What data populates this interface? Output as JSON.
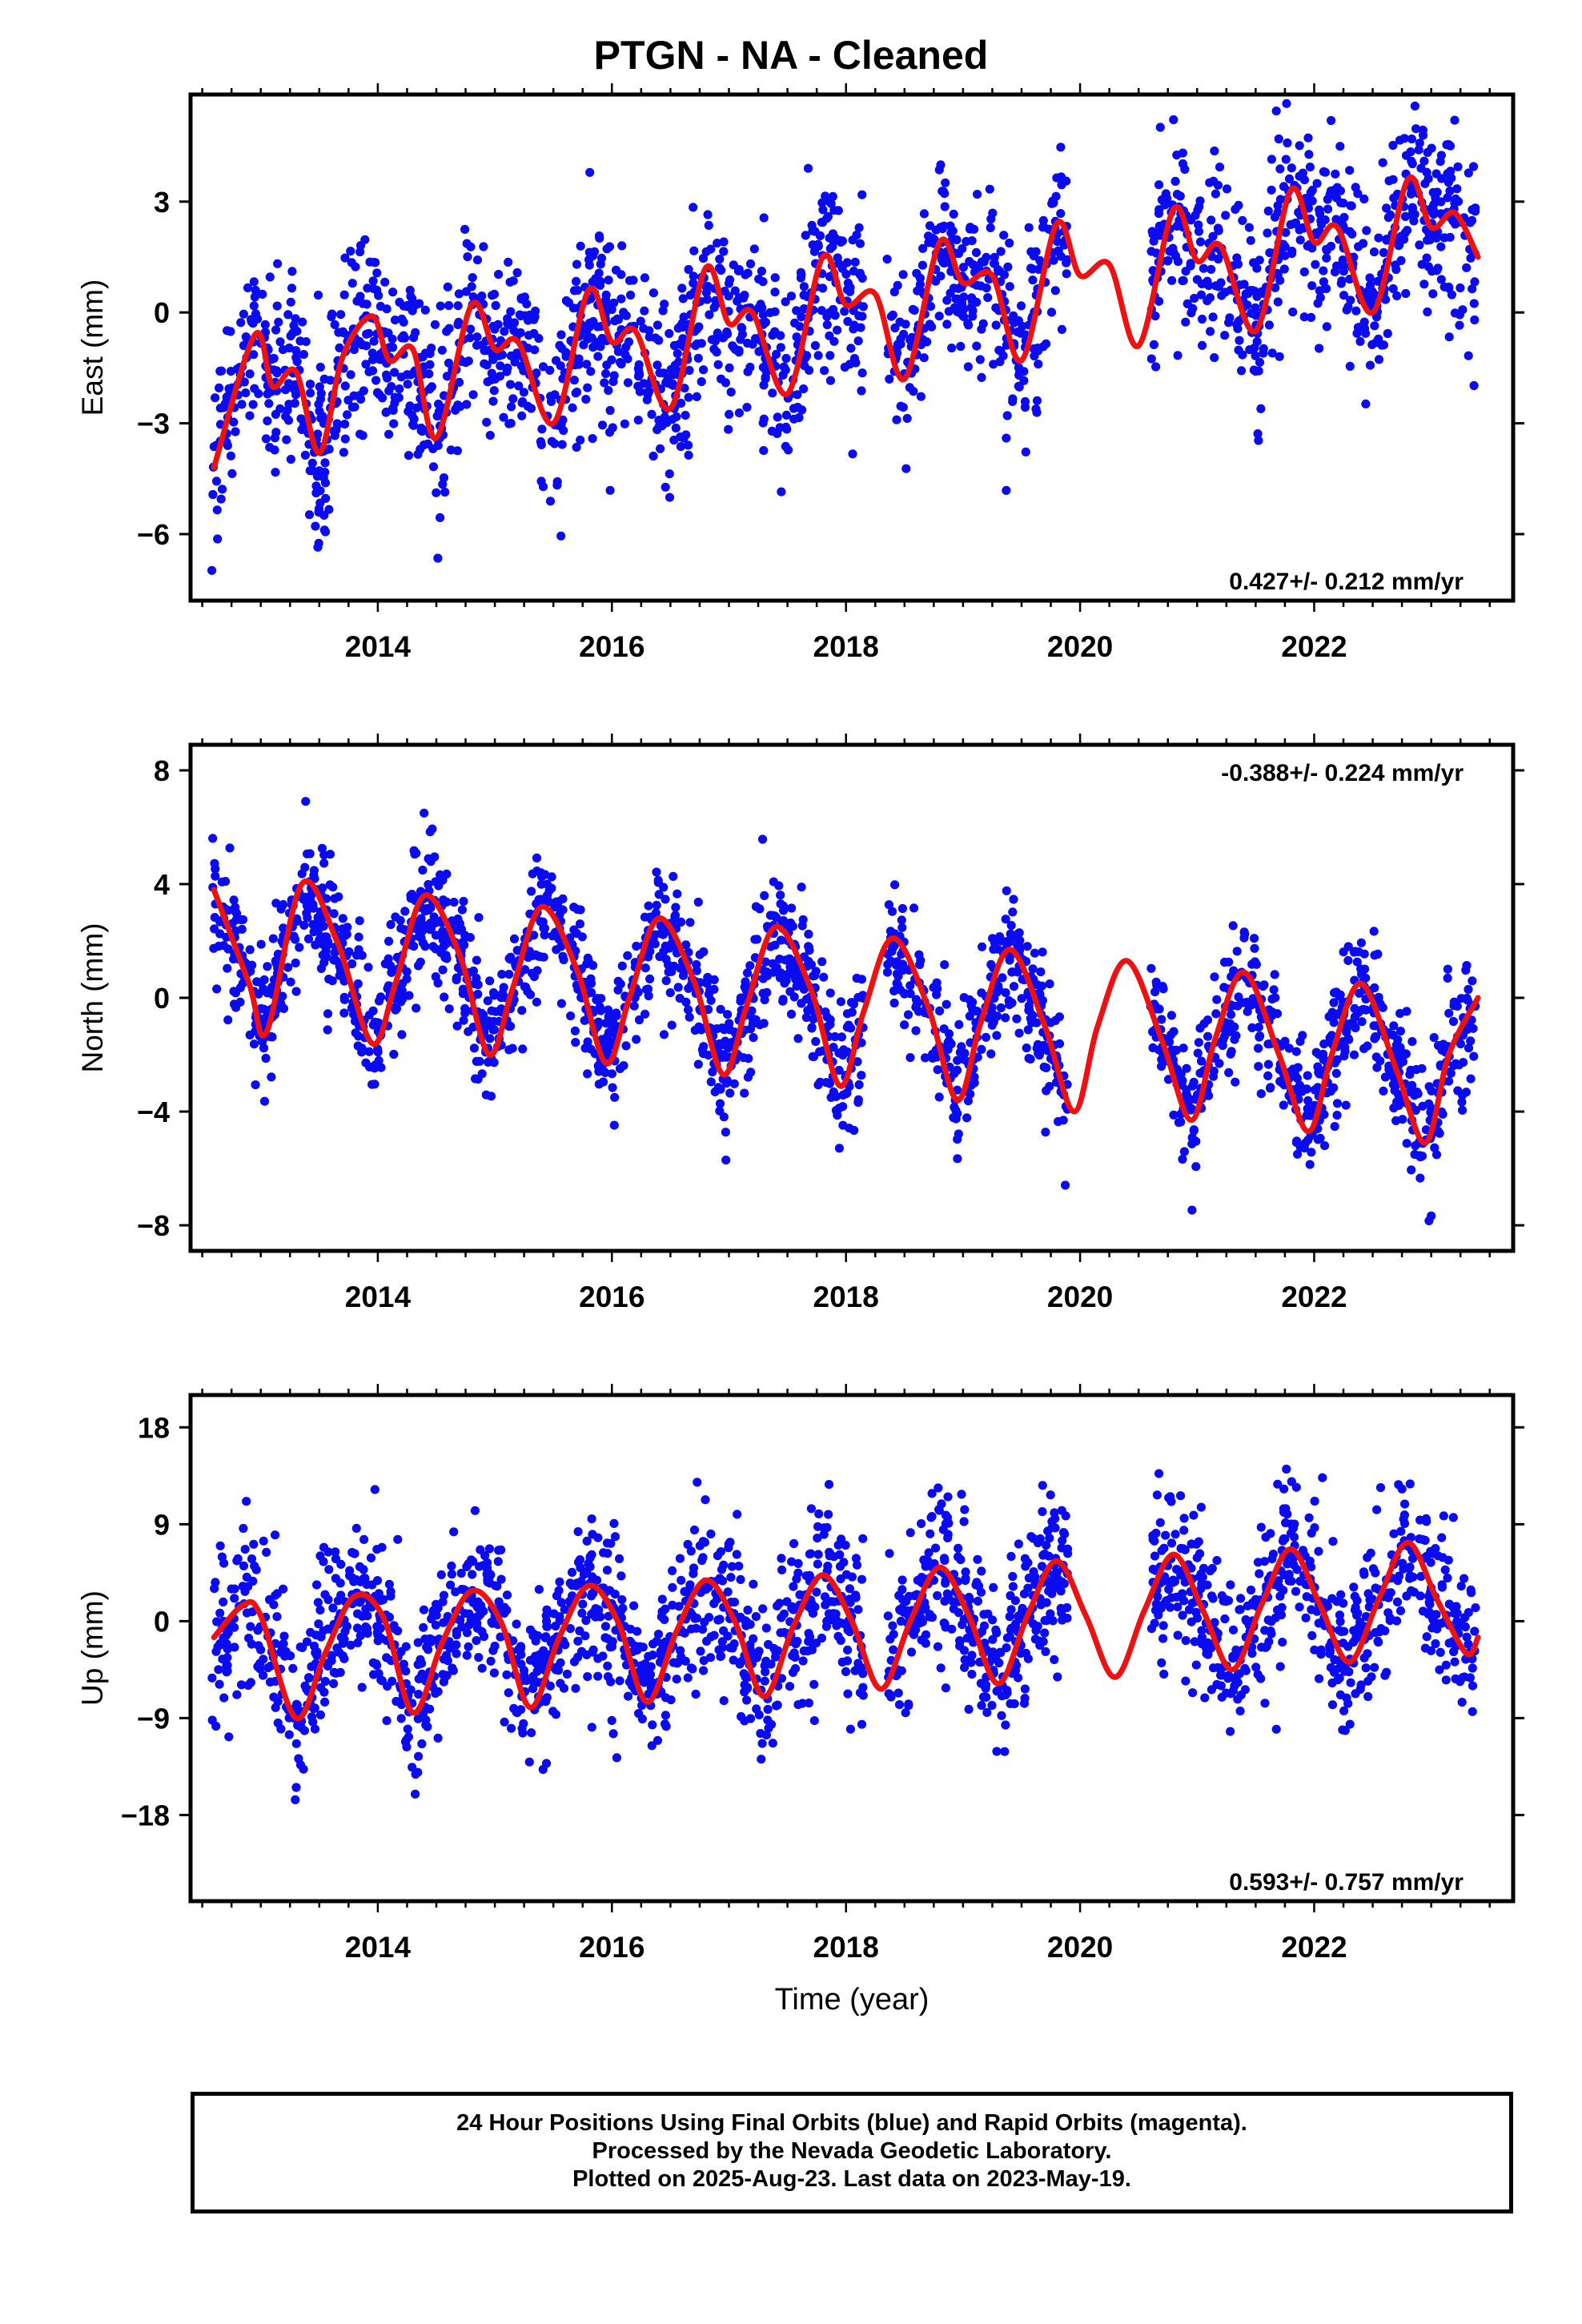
{
  "title": "PTGN  - NA - Cleaned",
  "chart_data": [
    {
      "type": "scatter",
      "panel": "east",
      "ylabel": "East (mm)",
      "xlabel": "",
      "xlim": [
        2012.4,
        2023.7
      ],
      "ylim": [
        -7.8,
        5.9
      ],
      "yticks": [
        -6,
        -3,
        0,
        3
      ],
      "yticklabels": [
        "−6",
        "−3",
        "0",
        "3"
      ],
      "xticks": [
        2014,
        2016,
        2018,
        2020,
        2022
      ],
      "xticklabels": [
        "2014",
        "2016",
        "2018",
        "2020",
        "2022"
      ],
      "rate_label": "0.427+/- 0.212 mm/yr",
      "rate_position": "bottom-right",
      "model": {
        "name": "model fit",
        "color": "#ee1111",
        "x": [
          2012.6,
          2012.95,
          2013.1,
          2013.3,
          2013.5,
          2013.7,
          2013.95,
          2014.1,
          2014.3,
          2014.5,
          2014.8,
          2015.0,
          2015.2,
          2015.5,
          2015.8,
          2016.0,
          2016.2,
          2016.5,
          2016.8,
          2017.0,
          2017.2,
          2017.5,
          2017.8,
          2018.0,
          2018.25,
          2018.5,
          2018.8,
          2019.0,
          2019.25,
          2019.5,
          2019.8,
          2020.0,
          2020.25,
          2020.5,
          2020.8,
          2021.0,
          2021.2,
          2021.5,
          2021.8,
          2022.0,
          2022.2,
          2022.5,
          2022.8,
          2023.0,
          2023.2,
          2023.4
        ],
        "y": [
          -4.2,
          -0.6,
          -2.0,
          -1.6,
          -3.8,
          -1.2,
          -0.1,
          -1.3,
          -1.0,
          -3.4,
          0.2,
          -1.0,
          -0.8,
          -3.0,
          0.6,
          -0.8,
          -0.5,
          -2.6,
          1.2,
          -0.3,
          0.0,
          -2.2,
          1.5,
          0.2,
          0.5,
          -1.8,
          1.9,
          0.8,
          1.0,
          -1.3,
          2.4,
          1.0,
          1.3,
          -0.9,
          2.8,
          1.4,
          1.8,
          -0.5,
          3.3,
          1.9,
          2.3,
          0.0,
          3.6,
          2.3,
          2.7,
          1.5
        ]
      },
      "observations": {
        "name": "24 hour positions",
        "color": "#0b0bf3",
        "seed": 11,
        "count": 2000,
        "noise_sd": 1.25,
        "span": [
          2012.58,
          2023.38
        ],
        "gaps": [
          [
            2018.15,
            2018.35
          ],
          [
            2019.9,
            2020.6
          ]
        ]
      }
    },
    {
      "type": "scatter",
      "panel": "north",
      "ylabel": "North (mm)",
      "xlabel": "",
      "xlim": [
        2012.4,
        2023.7
      ],
      "ylim": [
        -8.9,
        8.9
      ],
      "yticks": [
        -8,
        -4,
        0,
        4,
        8
      ],
      "yticklabels": [
        "−8",
        "−4",
        "0",
        "4",
        "8"
      ],
      "xticks": [
        2014,
        2016,
        2018,
        2020,
        2022
      ],
      "xticklabels": [
        "2014",
        "2016",
        "2018",
        "2020",
        "2022"
      ],
      "rate_label": "-0.388+/- 0.224 mm/yr",
      "rate_position": "top-right",
      "model": {
        "name": "model fit",
        "color": "#ee1111",
        "x": [
          2012.6,
          2012.9,
          2013.05,
          2013.35,
          2013.65,
          2013.95,
          2014.15,
          2014.4,
          2014.7,
          2014.95,
          2015.15,
          2015.4,
          2015.7,
          2015.95,
          2016.15,
          2016.4,
          2016.7,
          2016.95,
          2017.15,
          2017.4,
          2017.7,
          2017.95,
          2018.15,
          2018.4,
          2018.7,
          2018.95,
          2019.15,
          2019.4,
          2019.7,
          2019.95,
          2020.15,
          2020.4,
          2020.7,
          2020.95,
          2021.15,
          2021.4,
          2021.7,
          2021.95,
          2022.15,
          2022.4,
          2022.7,
          2022.95,
          2023.15,
          2023.4
        ],
        "y": [
          3.8,
          0.5,
          -1.2,
          4.0,
          2.0,
          -1.6,
          0.5,
          3.6,
          1.5,
          -2.0,
          0.3,
          3.2,
          1.0,
          -2.3,
          0.0,
          2.8,
          0.6,
          -2.7,
          -0.3,
          2.5,
          0.3,
          -3.1,
          -0.5,
          2.1,
          -0.3,
          -3.6,
          -0.9,
          1.7,
          -1.0,
          -4.0,
          -1.0,
          1.3,
          -1.5,
          -4.3,
          -1.5,
          0.9,
          -2.0,
          -4.7,
          -2.0,
          0.5,
          -2.5,
          -5.1,
          -2.0,
          0.0
        ]
      },
      "observations": {
        "name": "24 hour positions",
        "color": "#0b0bf3",
        "seed": 23,
        "count": 2000,
        "noise_sd": 1.15,
        "span": [
          2012.58,
          2023.38
        ],
        "gaps": [
          [
            2018.15,
            2018.35
          ],
          [
            2019.9,
            2020.6
          ]
        ]
      }
    },
    {
      "type": "scatter",
      "panel": "up",
      "ylabel": "Up (mm)",
      "xlabel": "Time (year)",
      "xlim": [
        2012.4,
        2023.7
      ],
      "ylim": [
        -26,
        21
      ],
      "yticks": [
        -18,
        -9,
        0,
        9,
        18
      ],
      "yticklabels": [
        "−18",
        "−9",
        "0",
        "9",
        "18"
      ],
      "xticks": [
        2014,
        2016,
        2018,
        2020,
        2022
      ],
      "xticklabels": [
        "2014",
        "2016",
        "2018",
        "2020",
        "2022"
      ],
      "rate_label": "0.593+/- 0.757 mm/yr",
      "rate_position": "bottom-right",
      "model": {
        "name": "model fit",
        "color": "#ee1111",
        "x": [
          2012.6,
          2012.85,
          2013.0,
          2013.3,
          2013.55,
          2013.8,
          2014.05,
          2014.3,
          2014.55,
          2014.8,
          2015.05,
          2015.3,
          2015.55,
          2015.8,
          2016.05,
          2016.3,
          2016.55,
          2016.8,
          2017.05,
          2017.3,
          2017.55,
          2017.8,
          2018.05,
          2018.3,
          2018.55,
          2018.8,
          2019.05,
          2019.3,
          2019.55,
          2019.8,
          2020.05,
          2020.3,
          2020.55,
          2020.8,
          2021.05,
          2021.3,
          2021.55,
          2021.8,
          2022.05,
          2022.3,
          2022.55,
          2022.8,
          2023.05,
          2023.3,
          2023.4
        ],
        "y": [
          -1.5,
          1.5,
          0.5,
          -9.0,
          -3.0,
          2.3,
          0.3,
          -8.5,
          -2.0,
          2.8,
          0.0,
          -8.0,
          -1.5,
          3.3,
          0.0,
          -7.5,
          -1.0,
          3.8,
          0.0,
          -7.0,
          -0.5,
          4.3,
          0.0,
          -6.3,
          0.0,
          5.0,
          0.5,
          -5.8,
          0.5,
          5.6,
          0.5,
          -5.2,
          1.0,
          6.2,
          1.0,
          -4.5,
          1.5,
          6.7,
          1.5,
          -3.8,
          2.0,
          7.3,
          2.0,
          -3.0,
          -1.5
        ]
      },
      "observations": {
        "name": "24 hour positions",
        "color": "#0b0bf3",
        "seed": 37,
        "count": 2000,
        "noise_sd": 3.8,
        "span": [
          2012.58,
          2023.38
        ],
        "gaps": [
          [
            2018.15,
            2018.35
          ],
          [
            2019.9,
            2020.6
          ]
        ]
      }
    }
  ],
  "footer": {
    "line1": "24 Hour Positions Using Final Orbits (blue) and Rapid Orbits (magenta).",
    "line2": "Processed by the Nevada Geodetic Laboratory.",
    "line3": "Plotted on 2025-Aug-23. Last data on 2023-May-19."
  }
}
